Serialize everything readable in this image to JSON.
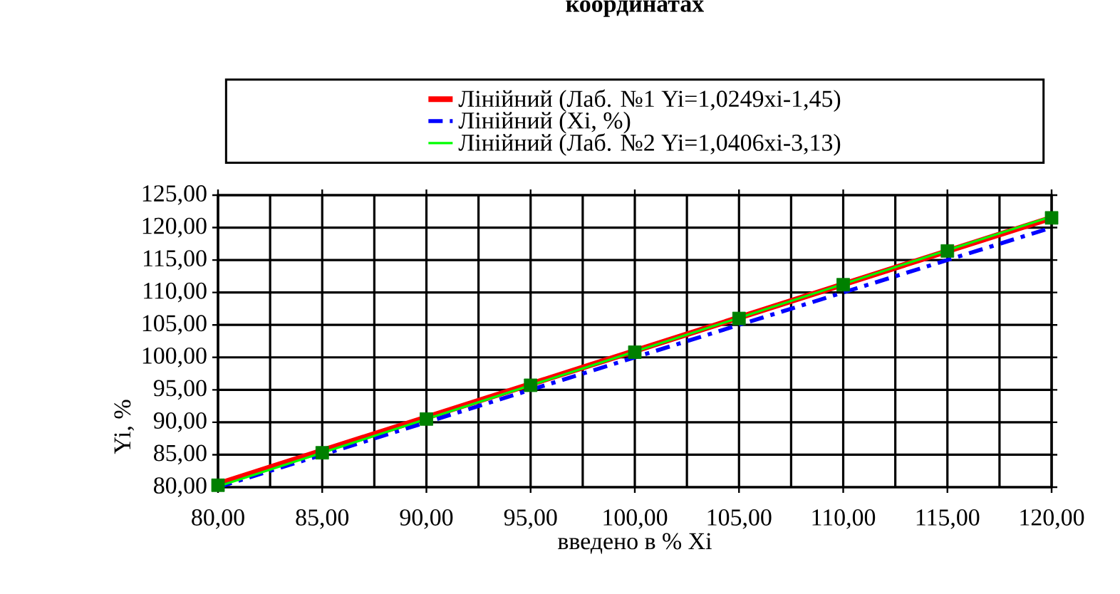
{
  "chart_data": {
    "type": "line",
    "title": "координатах",
    "xlabel": "введено в %   Xi",
    "ylabel": "Yi, %",
    "xlim": [
      80,
      120
    ],
    "ylim": [
      80,
      125
    ],
    "xticks": [
      {
        "value": 80,
        "label": "80,00"
      },
      {
        "value": 85,
        "label": "85,00"
      },
      {
        "value": 90,
        "label": "90,00"
      },
      {
        "value": 95,
        "label": "95,00"
      },
      {
        "value": 100,
        "label": "100,00"
      },
      {
        "value": 105,
        "label": "105,00"
      },
      {
        "value": 110,
        "label": "110,00"
      },
      {
        "value": 115,
        "label": "115,00"
      },
      {
        "value": 120,
        "label": "120,00"
      }
    ],
    "yticks": [
      {
        "value": 80,
        "label": "80,00"
      },
      {
        "value": 85,
        "label": "85,00"
      },
      {
        "value": 90,
        "label": "90,00"
      },
      {
        "value": 95,
        "label": "95,00"
      },
      {
        "value": 100,
        "label": "100,00"
      },
      {
        "value": 105,
        "label": "105,00"
      },
      {
        "value": 110,
        "label": "110,00"
      },
      {
        "value": 115,
        "label": "115,00"
      },
      {
        "value": 120,
        "label": "120,00"
      },
      {
        "value": 125,
        "label": "125,00"
      }
    ],
    "grid": true,
    "legend": "top",
    "marker": "none",
    "series": [
      {
        "type": "scatter",
        "marker": "square",
        "color": "#008000",
        "x": [
          80,
          85,
          90,
          95,
          100,
          105,
          110,
          115,
          120
        ],
        "values": [
          80.3,
          85.3,
          90.5,
          95.7,
          100.8,
          106.0,
          111.2,
          116.4,
          121.5
        ]
      },
      {
        "name": "Лінійний (Лаб. №1 Yi=1,0249xi-1,45)",
        "color": "#ff0000",
        "line_style": "solid",
        "x": [
          80,
          120
        ],
        "values": [
          80.5,
          121.5
        ]
      },
      {
        "name": "Лінійний (Xi, %)",
        "color": "#0000ff",
        "line_style": "dashdot",
        "x": [
          80,
          120
        ],
        "values": [
          80,
          120
        ]
      },
      {
        "name": "Лінійний (Лаб. №2 Yi=1,0406xi-3,13)",
        "color": "#00ff00",
        "line_style": "solid",
        "x": [
          80,
          120
        ],
        "values": [
          80.1,
          121.7
        ]
      }
    ]
  }
}
